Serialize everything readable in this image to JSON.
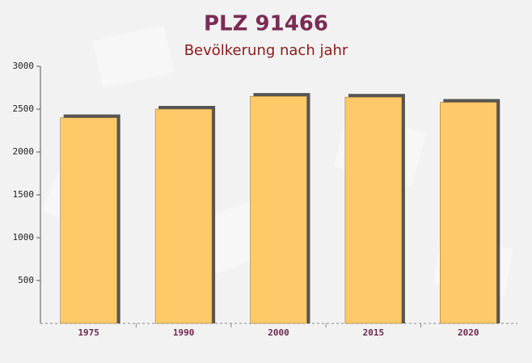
{
  "chart_data": {
    "type": "bar",
    "title": "PLZ 91466",
    "subtitle": "Bevölkerung nach jahr",
    "categories": [
      "1975",
      "1990",
      "2000",
      "2015",
      "2020"
    ],
    "values": [
      2400,
      2500,
      2650,
      2640,
      2580
    ],
    "color": "#fec968",
    "ylim": [
      0,
      3000
    ],
    "yticks": [
      500,
      1000,
      1500,
      2000,
      2500,
      3000
    ],
    "grid": false
  }
}
